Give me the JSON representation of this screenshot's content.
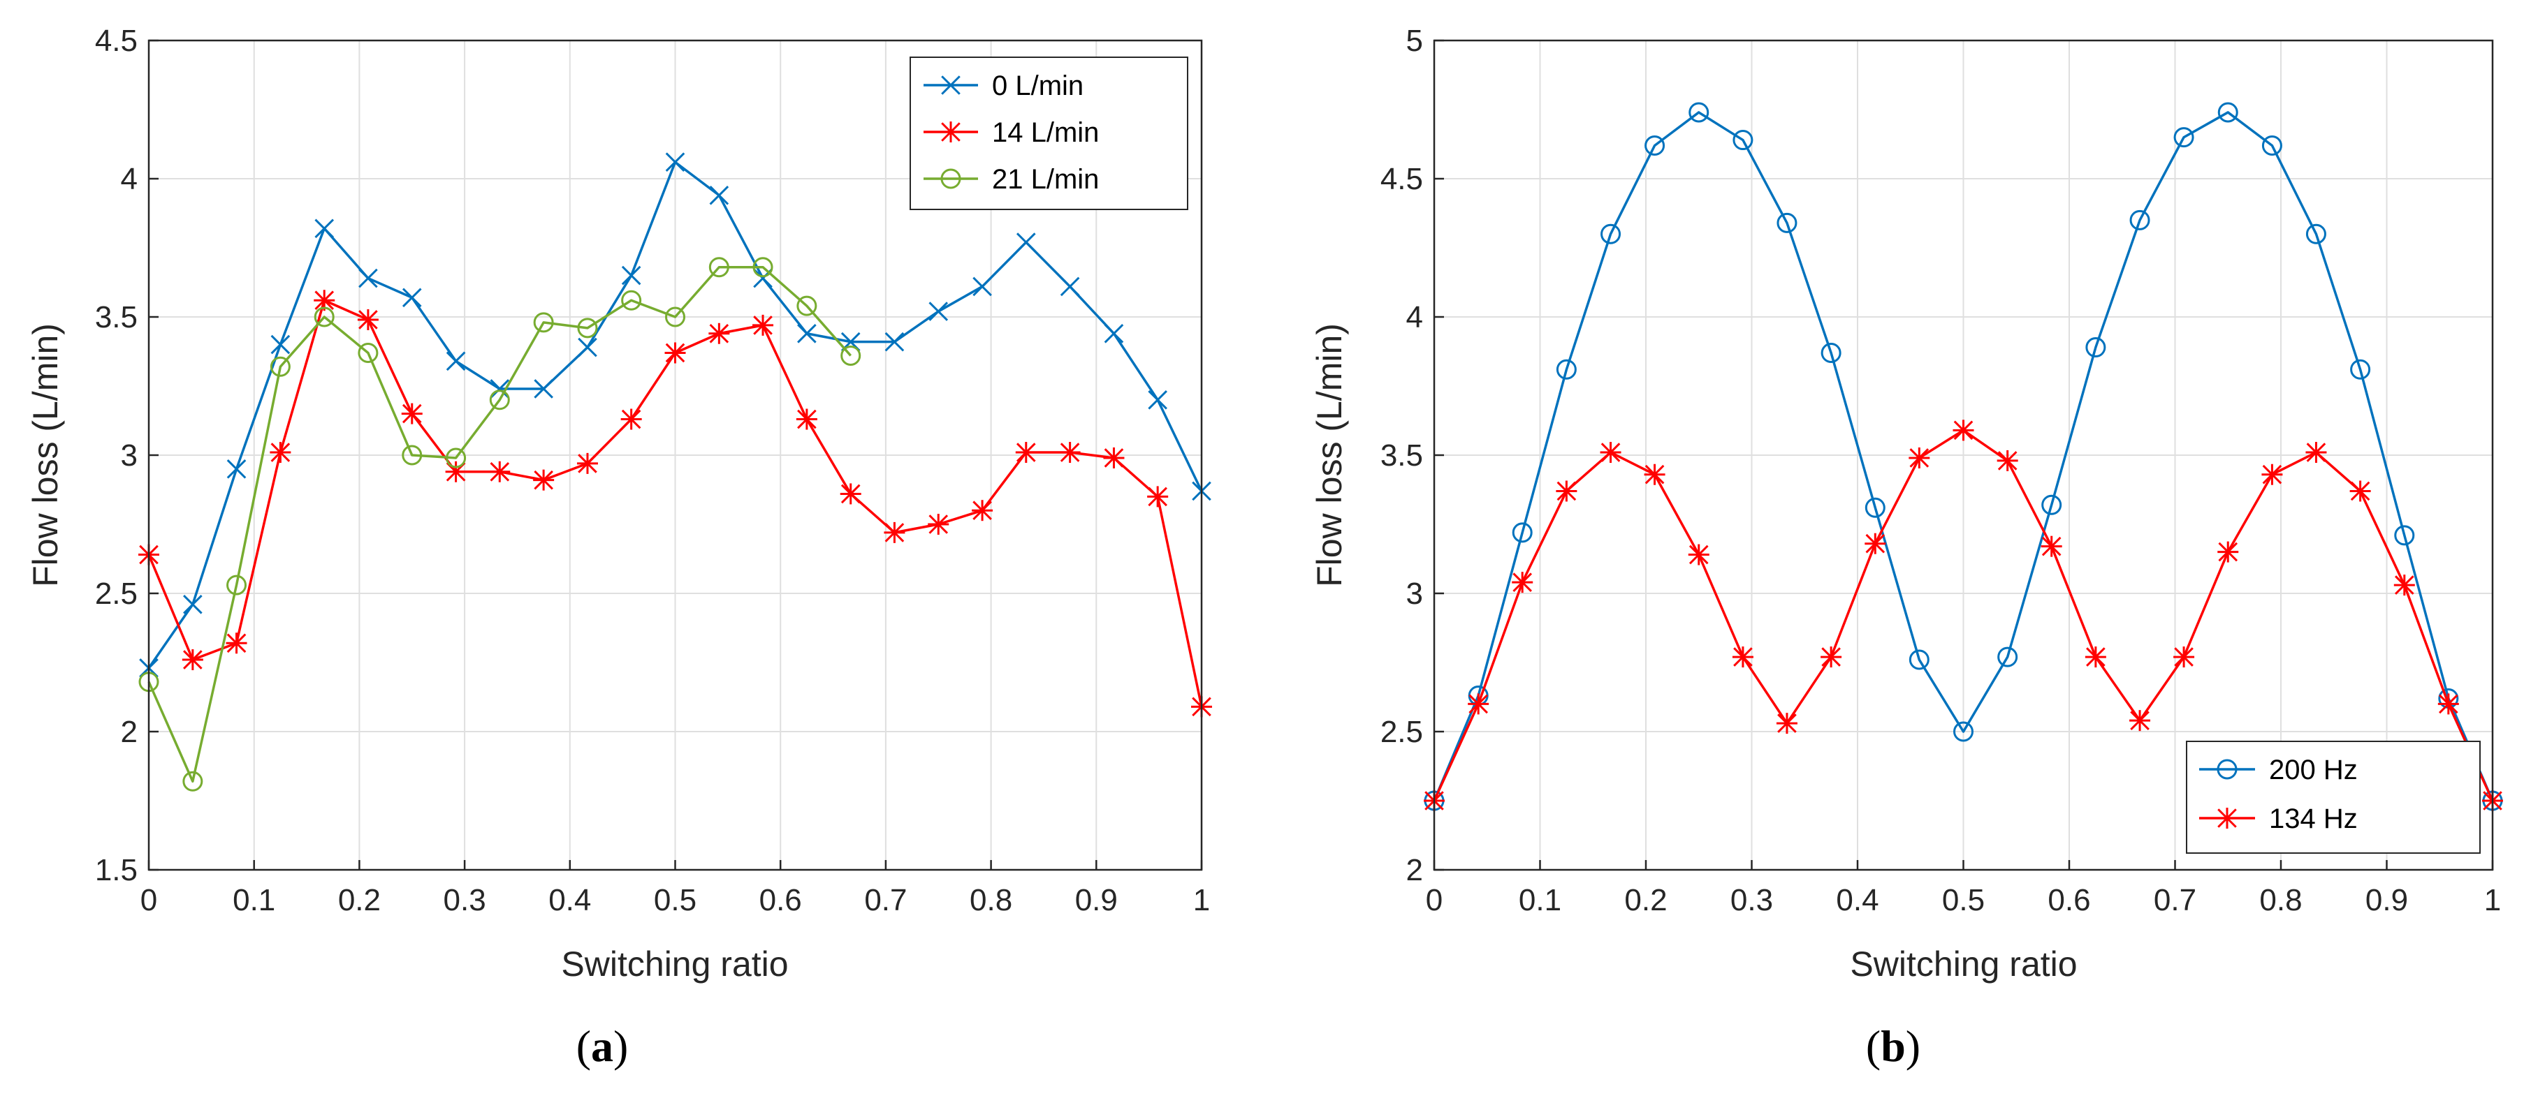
{
  "chart_data": [
    {
      "type": "line",
      "panel_label": "a",
      "xlabel": "Switching ratio",
      "ylabel": "Flow loss (L/min)",
      "xlim": [
        0,
        1
      ],
      "ylim": [
        1.5,
        4.5
      ],
      "xticks": [
        0,
        0.1,
        0.2,
        0.3,
        0.4,
        0.5,
        0.6,
        0.7,
        0.8,
        0.9,
        1
      ],
      "xtick_labels": [
        "0",
        "0.1",
        "0.2",
        "0.3",
        "0.4",
        "0.5",
        "0.6",
        "0.7",
        "0.8",
        "0.9",
        "1"
      ],
      "yticks": [
        1.5,
        2,
        2.5,
        3,
        3.5,
        4,
        4.5
      ],
      "ytick_labels": [
        "1.5",
        "2",
        "2.5",
        "3",
        "3.5",
        "4",
        "4.5"
      ],
      "grid": true,
      "legend_position": "top-right",
      "series": [
        {
          "name": "0 L/min",
          "color": "#0072BD",
          "marker": "x",
          "x": [
            0,
            0.0417,
            0.0833,
            0.125,
            0.1667,
            0.2083,
            0.25,
            0.2917,
            0.3333,
            0.375,
            0.4167,
            0.4583,
            0.5,
            0.5417,
            0.5833,
            0.625,
            0.6667,
            0.7083,
            0.75,
            0.7917,
            0.8333,
            0.875,
            0.9167,
            0.9583,
            1
          ],
          "y": [
            2.23,
            2.46,
            2.95,
            3.4,
            3.82,
            3.64,
            3.57,
            3.34,
            3.24,
            3.24,
            3.39,
            3.65,
            4.06,
            3.94,
            3.64,
            3.44,
            3.41,
            3.41,
            3.52,
            3.61,
            3.77,
            3.61,
            3.44,
            3.2,
            2.87
          ]
        },
        {
          "name": "14 L/min",
          "color": "#FF0000",
          "marker": "star",
          "x": [
            0,
            0.0417,
            0.0833,
            0.125,
            0.1667,
            0.2083,
            0.25,
            0.2917,
            0.3333,
            0.375,
            0.4167,
            0.4583,
            0.5,
            0.5417,
            0.5833,
            0.625,
            0.6667,
            0.7083,
            0.75,
            0.7917,
            0.8333,
            0.875,
            0.9167,
            0.9583,
            1
          ],
          "y": [
            2.64,
            2.26,
            2.32,
            3.01,
            3.56,
            3.49,
            3.15,
            2.94,
            2.94,
            2.91,
            2.97,
            3.13,
            3.37,
            3.44,
            3.47,
            3.13,
            2.86,
            2.72,
            2.75,
            2.8,
            3.01,
            3.01,
            2.99,
            2.85,
            2.09
          ]
        },
        {
          "name": "21 L/min",
          "color": "#77AC30",
          "marker": "circle",
          "x": [
            0,
            0.0417,
            0.0833,
            0.125,
            0.1667,
            0.2083,
            0.25,
            0.2917,
            0.3333,
            0.375,
            0.4167,
            0.4583,
            0.5,
            0.5417,
            0.5833,
            0.625,
            0.6667
          ],
          "y": [
            2.18,
            1.82,
            2.53,
            3.32,
            3.5,
            3.37,
            3.0,
            2.99,
            3.2,
            3.48,
            3.46,
            3.56,
            3.5,
            3.68,
            3.68,
            3.54,
            3.36
          ]
        }
      ]
    },
    {
      "type": "line",
      "panel_label": "b",
      "xlabel": "Switching ratio",
      "ylabel": "Flow loss (L/min)",
      "xlim": [
        0,
        1
      ],
      "ylim": [
        2,
        5
      ],
      "xticks": [
        0,
        0.1,
        0.2,
        0.3,
        0.4,
        0.5,
        0.6,
        0.7,
        0.8,
        0.9,
        1
      ],
      "xtick_labels": [
        "0",
        "0.1",
        "0.2",
        "0.3",
        "0.4",
        "0.5",
        "0.6",
        "0.7",
        "0.8",
        "0.9",
        "1"
      ],
      "yticks": [
        2,
        2.5,
        3,
        3.5,
        4,
        4.5,
        5
      ],
      "ytick_labels": [
        "2",
        "2.5",
        "3",
        "3.5",
        "4",
        "4.5",
        "5"
      ],
      "grid": true,
      "legend_position": "bottom-right",
      "series": [
        {
          "name": "200 Hz",
          "color": "#0072BD",
          "marker": "circle",
          "x": [
            0,
            0.0417,
            0.0833,
            0.125,
            0.1667,
            0.2083,
            0.25,
            0.2917,
            0.3333,
            0.375,
            0.4167,
            0.4583,
            0.5,
            0.5417,
            0.5833,
            0.625,
            0.6667,
            0.7083,
            0.75,
            0.7917,
            0.8333,
            0.875,
            0.9167,
            0.9583,
            1
          ],
          "y": [
            2.25,
            2.63,
            3.22,
            3.81,
            4.3,
            4.62,
            4.74,
            4.64,
            4.34,
            3.87,
            3.31,
            2.76,
            2.5,
            2.77,
            3.32,
            3.89,
            4.35,
            4.65,
            4.74,
            4.62,
            4.3,
            3.81,
            3.21,
            2.62,
            2.25
          ]
        },
        {
          "name": "134 Hz",
          "color": "#FF0000",
          "marker": "star",
          "x": [
            0,
            0.0417,
            0.0833,
            0.125,
            0.1667,
            0.2083,
            0.25,
            0.2917,
            0.3333,
            0.375,
            0.4167,
            0.4583,
            0.5,
            0.5417,
            0.5833,
            0.625,
            0.6667,
            0.7083,
            0.75,
            0.7917,
            0.8333,
            0.875,
            0.9167,
            0.9583,
            1
          ],
          "y": [
            2.25,
            2.6,
            3.04,
            3.37,
            3.51,
            3.43,
            3.14,
            2.77,
            2.53,
            2.77,
            3.18,
            3.49,
            3.59,
            3.48,
            3.17,
            2.77,
            2.54,
            2.77,
            3.15,
            3.43,
            3.51,
            3.37,
            3.03,
            2.6,
            2.25
          ]
        }
      ]
    }
  ]
}
